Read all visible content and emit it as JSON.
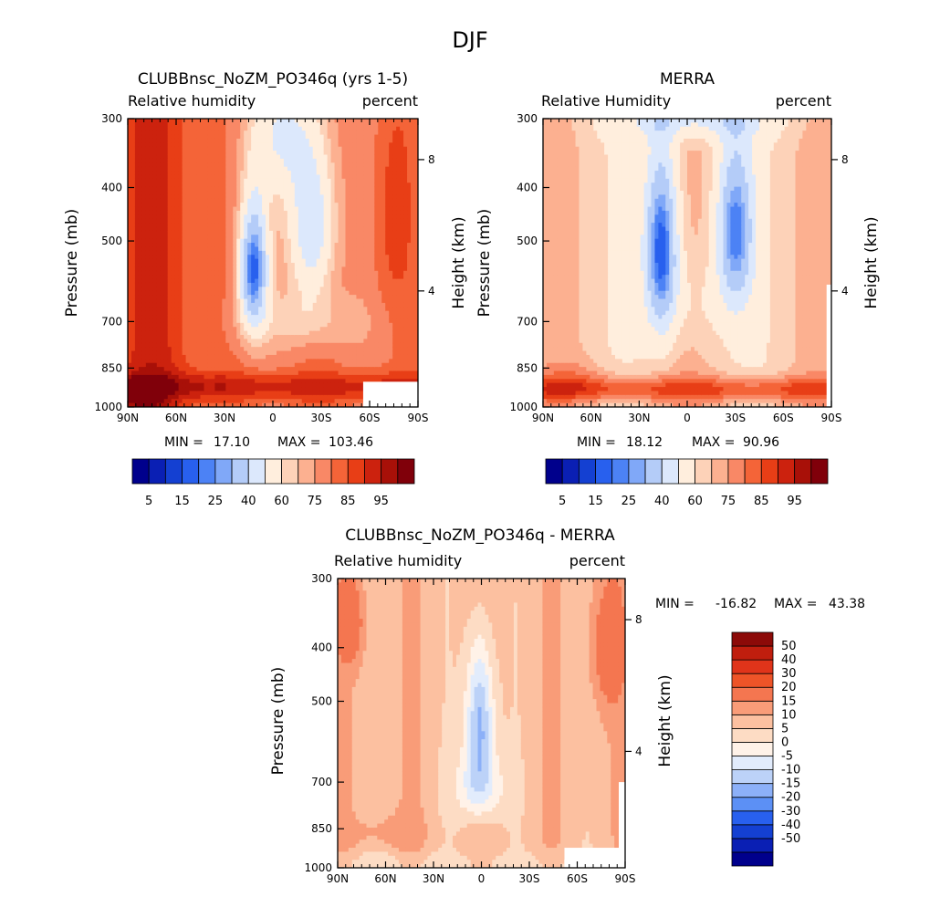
{
  "figure": {
    "title": "DJF"
  },
  "palettes": {
    "abs": [
      "#00008C",
      "#0A1FB4",
      "#1440D2",
      "#2860EE",
      "#4C82F5",
      "#80A8F8",
      "#B4CCF8",
      "#DCE8FC",
      "#FFEEDD",
      "#FDD2B8",
      "#FCB090",
      "#F98866",
      "#F46438",
      "#E83E16",
      "#CC220E",
      "#A81008",
      "#80000A"
    ],
    "diff": [
      "#00008C",
      "#0A1FB4",
      "#1440D2",
      "#2860EE",
      "#5C90F5",
      "#8CB0F8",
      "#BCD2F8",
      "#E2ECFC",
      "#FFF2E8",
      "#FDDCC4",
      "#FCC0A0",
      "#F99C78",
      "#F47650",
      "#EE5428",
      "#E0341A",
      "#C01E0E",
      "#8C0A08"
    ]
  },
  "chart_data": [
    {
      "type": "contour",
      "title": "CLUBBnsc_NoZM_PO346q (yrs 1-5)",
      "subtitle_left": "Relative humidity",
      "subtitle_right": "percent",
      "ylabel": "Pressure (mb)",
      "ylabel_right": "Height (km)",
      "x_ticks": [
        "90N",
        "60N",
        "30N",
        "0",
        "30S",
        "60S",
        "90S"
      ],
      "y_ticks": [
        "300",
        "400",
        "500",
        "700",
        "850",
        "1000"
      ],
      "y_ticks_right": [
        "8",
        "4"
      ],
      "stats": {
        "min_label": "MIN =",
        "min": "17.10",
        "max_label": "MAX =",
        "max": "103.46"
      },
      "legend_labels": [
        "5",
        "15",
        "25",
        "40",
        "60",
        "75",
        "85",
        "95"
      ],
      "zmin": 17.1,
      "zmax": 103.46
    },
    {
      "type": "contour",
      "title": "MERRA",
      "subtitle_left": "Relative Humidity",
      "subtitle_right": "percent",
      "ylabel": "Pressure (mb)",
      "ylabel_right": "Height (km)",
      "x_ticks": [
        "90N",
        "60N",
        "30N",
        "0",
        "30S",
        "60S",
        "90S"
      ],
      "y_ticks": [
        "300",
        "400",
        "500",
        "700",
        "850",
        "1000"
      ],
      "y_ticks_right": [
        "8",
        "4"
      ],
      "stats": {
        "min_label": "MIN =",
        "min": "18.12",
        "max_label": "MAX =",
        "max": "90.96"
      },
      "legend_labels": [
        "5",
        "15",
        "25",
        "40",
        "60",
        "75",
        "85",
        "95"
      ],
      "zmin": 18.12,
      "zmax": 90.96
    },
    {
      "type": "contour",
      "title": "CLUBBnsc_NoZM_PO346q - MERRA",
      "subtitle_left": "Relative humidity",
      "subtitle_right": "percent",
      "ylabel": "Pressure (mb)",
      "ylabel_right": "Height (km)",
      "x_ticks": [
        "90N",
        "60N",
        "30N",
        "0",
        "30S",
        "60S",
        "90S"
      ],
      "y_ticks": [
        "300",
        "400",
        "500",
        "700",
        "850",
        "1000"
      ],
      "y_ticks_right": [
        "8",
        "4"
      ],
      "stats": {
        "min_label": "MIN =",
        "min": "-16.82",
        "max_label": "MAX =",
        "max": "43.38"
      },
      "legend_labels": [
        "50",
        "40",
        "30",
        "20",
        "15",
        "10",
        "5",
        "0",
        "-5",
        "-10",
        "-15",
        "-20",
        "-30",
        "-40",
        "-50"
      ],
      "zmin": -16.82,
      "zmax": 43.38
    }
  ]
}
